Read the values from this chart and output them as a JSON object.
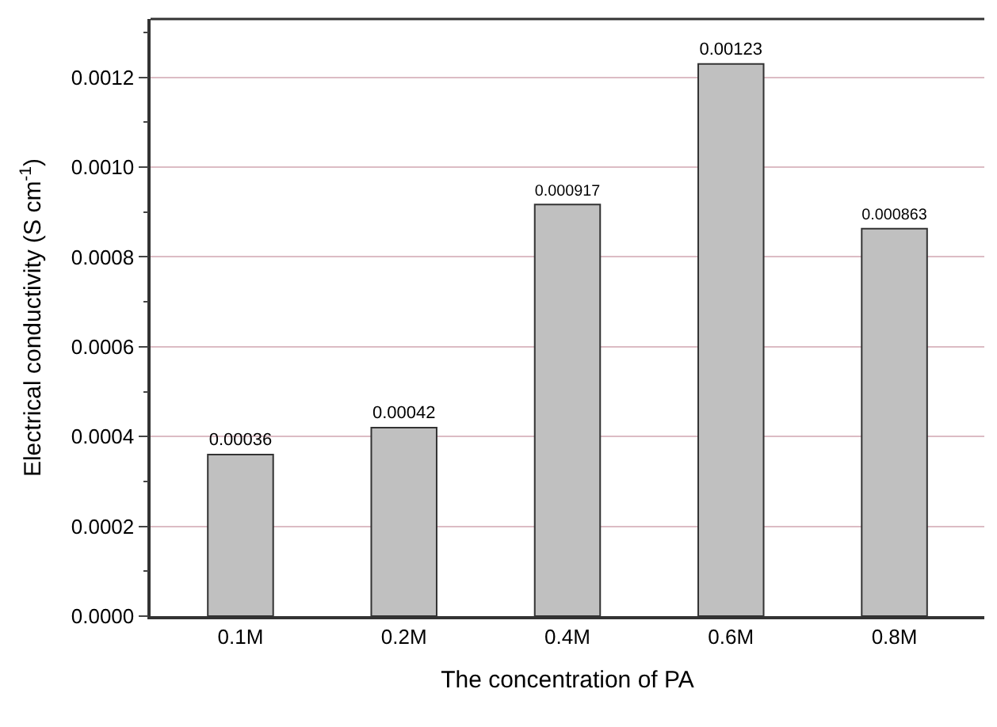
{
  "chart_data": {
    "type": "bar",
    "xlabel": "The concentration of PA",
    "ylabel": "Electrical conductivity (S cm$^{-1}$)",
    "categories": [
      "0.1M",
      "0.2M",
      "0.4M",
      "0.6M",
      "0.8M"
    ],
    "values": [
      0.00036,
      0.00042,
      0.000917,
      0.00123,
      0.000863
    ],
    "color": "#c0c0c0",
    "data_labels": true,
    "ylim": [
      0,
      0.00133
    ],
    "yticks": [
      {
        "value": 0,
        "label": "0.0000"
      },
      {
        "value": 0.0001,
        "label": null
      },
      {
        "value": 0.0002,
        "label": "0.0002"
      },
      {
        "value": 0.0003,
        "label": null
      },
      {
        "value": 0.0004,
        "label": "0.0004"
      },
      {
        "value": 0.0005,
        "label": null
      },
      {
        "value": 0.0006,
        "label": "0.0006"
      },
      {
        "value": 0.0007,
        "label": null
      },
      {
        "value": 0.0008,
        "label": "0.0008"
      },
      {
        "value": 0.0009,
        "label": null
      },
      {
        "value": 0.001,
        "label": "0.0010"
      },
      {
        "value": 0.0011,
        "label": null
      },
      {
        "value": 0.0012,
        "label": "0.0012"
      },
      {
        "value": 0.0013,
        "label": null
      }
    ],
    "grid": "y",
    "legend": false
  }
}
